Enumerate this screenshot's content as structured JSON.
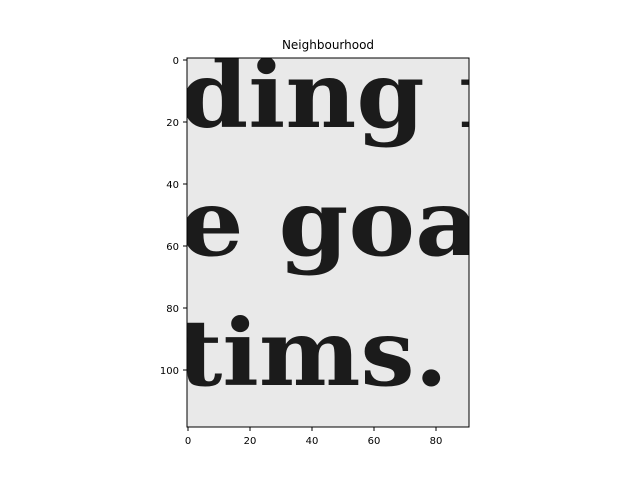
{
  "figure": {
    "title": "Neighbourhood",
    "x_ticks": [
      "0",
      "20",
      "40",
      "60",
      "80"
    ],
    "y_ticks": [
      "0",
      "20",
      "40",
      "60",
      "80",
      "100"
    ],
    "x_tick_values": [
      0,
      20,
      40,
      60,
      80
    ],
    "y_tick_values": [
      0,
      20,
      40,
      60,
      80,
      100
    ]
  },
  "image": {
    "text_lines": [
      "ding r",
      "e goa",
      "tims."
    ],
    "background_color": "#e9e9e9",
    "ink_color": "#1b1b1b"
  }
}
